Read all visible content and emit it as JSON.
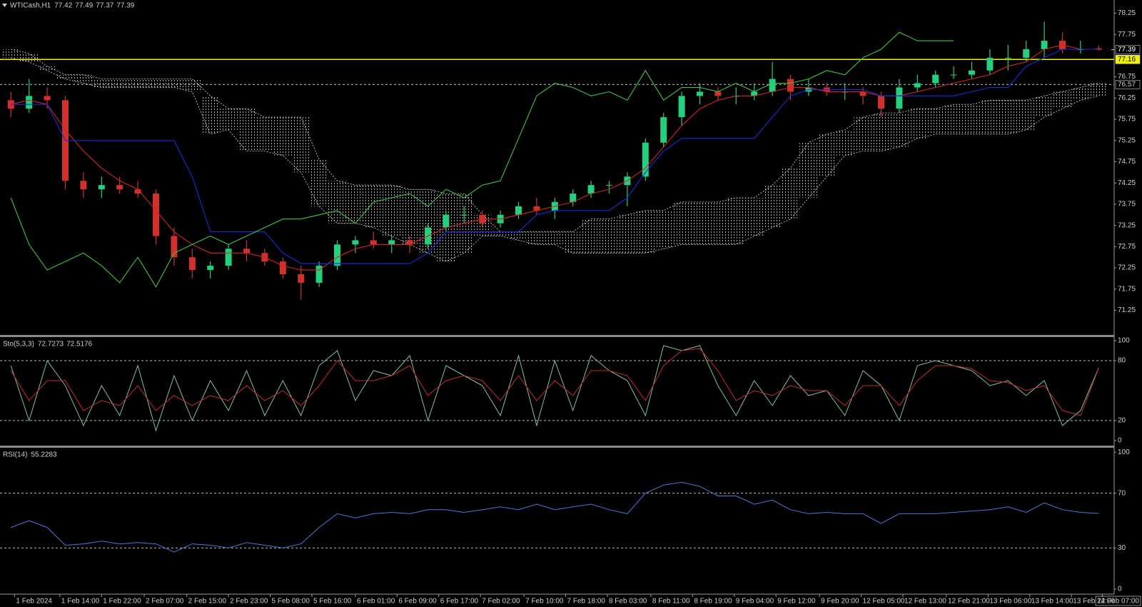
{
  "chart_data": [
    {
      "type": "candlestick",
      "title": "WTICash,H1",
      "header_values": [
        77.42,
        77.49,
        77.37,
        77.39
      ],
      "up_color": "#22d07e",
      "down_color": "#d2302c",
      "open": [
        76.2,
        76.0,
        76.3,
        76.2,
        74.3,
        74.1,
        74.2,
        74.1,
        74.0,
        73.0,
        72.5,
        72.2,
        72.3,
        72.7,
        72.6,
        72.4,
        72.1,
        71.9,
        72.3,
        72.8,
        72.9,
        72.8,
        72.9,
        72.8,
        73.2,
        73.5,
        73.5,
        73.3,
        73.5,
        73.7,
        73.6,
        73.8,
        74.0,
        74.2,
        74.2,
        74.4,
        75.2,
        75.8,
        76.3,
        76.4,
        76.3,
        76.3,
        76.4,
        76.7,
        76.4,
        76.5,
        76.4,
        76.4,
        76.3,
        76.0,
        76.5,
        76.6,
        76.8,
        76.8,
        76.9,
        77.2,
        77.2,
        77.4,
        77.6,
        77.4,
        77.42
      ],
      "high": [
        76.4,
        76.7,
        76.5,
        76.3,
        74.5,
        74.4,
        74.4,
        74.3,
        74.1,
        73.2,
        72.7,
        72.4,
        72.8,
        72.9,
        72.7,
        72.5,
        72.3,
        72.4,
        72.9,
        73.0,
        73.1,
        73.0,
        73.0,
        73.3,
        73.6,
        73.7,
        73.6,
        73.6,
        73.8,
        73.9,
        73.9,
        74.1,
        74.3,
        74.3,
        74.5,
        75.3,
        75.9,
        76.4,
        76.6,
        76.5,
        76.5,
        76.6,
        77.1,
        76.8,
        76.7,
        76.6,
        76.6,
        76.5,
        76.4,
        76.7,
        76.8,
        76.9,
        77.0,
        77.1,
        77.4,
        77.5,
        77.6,
        78.05,
        77.8,
        77.6,
        77.49
      ],
      "low": [
        75.8,
        75.9,
        76.0,
        74.1,
        73.9,
        73.9,
        74.0,
        73.9,
        72.8,
        72.3,
        72.0,
        72.0,
        72.2,
        72.4,
        72.3,
        72.0,
        71.5,
        71.8,
        72.2,
        72.6,
        72.7,
        72.6,
        72.6,
        72.7,
        73.1,
        73.3,
        73.2,
        73.2,
        73.4,
        73.5,
        73.4,
        73.7,
        73.9,
        74.0,
        73.7,
        74.3,
        75.1,
        75.6,
        76.1,
        76.2,
        76.1,
        76.2,
        76.3,
        76.2,
        76.3,
        76.3,
        76.2,
        76.1,
        75.8,
        75.9,
        76.4,
        76.5,
        76.7,
        76.7,
        76.8,
        76.9,
        77.1,
        77.2,
        77.3,
        77.3,
        77.37
      ],
      "close": [
        76.0,
        76.3,
        76.2,
        74.3,
        74.1,
        74.2,
        74.1,
        74.0,
        73.0,
        72.5,
        72.2,
        72.3,
        72.7,
        72.6,
        72.4,
        72.1,
        71.9,
        72.3,
        72.8,
        72.9,
        72.8,
        72.9,
        72.8,
        73.2,
        73.5,
        73.5,
        73.3,
        73.5,
        73.7,
        73.6,
        73.8,
        74.0,
        74.2,
        74.2,
        74.4,
        75.2,
        75.8,
        76.3,
        76.4,
        76.3,
        76.3,
        76.4,
        76.7,
        76.4,
        76.5,
        76.4,
        76.4,
        76.3,
        76.0,
        76.5,
        76.6,
        76.8,
        76.8,
        76.9,
        77.2,
        77.2,
        77.4,
        77.6,
        77.4,
        77.4,
        77.39
      ],
      "cloud": {
        "color": "#dcdcdc",
        "upper": [
          77.4,
          77.3,
          77.0,
          76.8,
          76.8,
          76.7,
          76.7,
          76.7,
          76.7,
          76.7,
          76.7,
          76.3,
          76.0,
          76.0,
          75.8,
          75.8,
          75.8,
          74.8,
          74.3,
          74.2,
          74.2,
          74.2,
          74.1,
          74.1,
          74.0,
          74.0,
          73.5,
          73.1,
          73.1,
          73.1,
          73.1,
          73.1,
          73.4,
          73.4,
          73.5,
          73.6,
          73.6,
          73.8,
          73.8,
          73.8,
          73.9,
          73.9,
          74.2,
          74.6,
          75.2,
          75.4,
          75.5,
          75.8,
          75.9,
          75.9,
          76.0,
          76.0,
          76.1,
          76.1,
          76.2,
          76.2,
          76.2,
          76.3,
          76.4,
          76.5,
          76.6
        ],
        "lower": [
          77.2,
          77.1,
          76.9,
          76.7,
          76.6,
          76.5,
          76.5,
          76.5,
          76.5,
          76.5,
          76.4,
          75.4,
          75.5,
          75.0,
          75.0,
          74.9,
          74.5,
          73.7,
          73.3,
          73.3,
          73.2,
          73.0,
          72.8,
          72.6,
          72.4,
          72.6,
          73.0,
          73.0,
          72.9,
          72.8,
          72.8,
          72.6,
          72.6,
          72.6,
          72.6,
          72.6,
          72.7,
          72.8,
          72.8,
          72.8,
          72.8,
          73.0,
          73.2,
          73.4,
          73.9,
          74.4,
          74.9,
          75.0,
          75.0,
          75.1,
          75.3,
          75.4,
          75.4,
          75.4,
          75.4,
          75.4,
          75.5,
          75.8,
          76.0,
          76.2,
          76.3
        ]
      },
      "series": [
        {
          "color": "#d8221f",
          "values": [
            76.1,
            76.2,
            76.1,
            75.5,
            75.0,
            74.6,
            74.3,
            74.1,
            73.6,
            73.1,
            72.8,
            72.6,
            72.6,
            72.6,
            72.5,
            72.3,
            72.2,
            72.2,
            72.5,
            72.7,
            72.8,
            72.8,
            72.8,
            73.0,
            73.2,
            73.3,
            73.4,
            73.4,
            73.5,
            73.6,
            73.7,
            73.8,
            74.0,
            74.1,
            74.3,
            74.6,
            75.1,
            75.6,
            76.0,
            76.2,
            76.3,
            76.3,
            76.4,
            76.5,
            76.5,
            76.4,
            76.4,
            76.4,
            76.3,
            76.3,
            76.4,
            76.5,
            76.6,
            76.7,
            76.8,
            77.0,
            77.1,
            77.4,
            77.5,
            77.4,
            77.4
          ]
        },
        {
          "color": "#1a2be0",
          "values": [
            76.1,
            76.1,
            76.1,
            75.25,
            75.25,
            75.25,
            75.25,
            75.25,
            75.25,
            75.25,
            74.4,
            73.1,
            73.1,
            73.1,
            73.1,
            72.6,
            72.35,
            72.35,
            72.35,
            72.35,
            72.35,
            72.35,
            72.35,
            72.6,
            73.1,
            73.1,
            73.1,
            73.1,
            73.1,
            73.5,
            73.6,
            73.6,
            73.6,
            73.6,
            73.9,
            74.5,
            75.0,
            75.3,
            75.3,
            75.3,
            75.3,
            75.3,
            75.8,
            76.3,
            76.45,
            76.45,
            76.45,
            76.45,
            76.3,
            76.3,
            76.3,
            76.3,
            76.3,
            76.4,
            76.5,
            76.5,
            77.0,
            77.2,
            77.4,
            77.4,
            77.4
          ]
        },
        {
          "color": "#3cc83c",
          "values": [
            73.9,
            72.8,
            72.2,
            72.4,
            72.6,
            72.3,
            71.9,
            72.5,
            71.8,
            72.6,
            72.8,
            73.0,
            72.8,
            73.0,
            73.2,
            73.4,
            73.4,
            73.5,
            73.6,
            73.3,
            73.8,
            73.9,
            74.0,
            73.7,
            74.1,
            73.9,
            74.2,
            74.3,
            75.3,
            76.3,
            76.6,
            76.5,
            76.3,
            76.4,
            76.2,
            76.9,
            76.2,
            76.5,
            76.5,
            76.4,
            76.6,
            76.4,
            76.6,
            76.6,
            76.7,
            76.9,
            76.8,
            77.2,
            77.4,
            77.8,
            77.6,
            77.6,
            77.6,
            null,
            null,
            null,
            null,
            null,
            null,
            null,
            null
          ]
        }
      ],
      "ylim": [
        70.67,
        78.56
      ],
      "yticks": [
        71.25,
        71.75,
        72.25,
        72.75,
        73.25,
        73.75,
        74.25,
        74.75,
        75.25,
        75.75,
        76.25,
        76.75,
        77.75,
        78.25
      ],
      "hlines": [
        {
          "value": 77.16,
          "color": "#f0f000",
          "style": "solid"
        },
        {
          "value": 76.57,
          "color": "#c8c8c8",
          "style": "dashed"
        }
      ],
      "last_price": 77.39,
      "xticks": [
        {
          "value": 0.2,
          "label": "1 Feb 2024"
        },
        {
          "value": 2.7,
          "label": "1 Feb 14:00"
        },
        {
          "value": 5.0,
          "label": "1 Feb 22:00"
        },
        {
          "value": 7.35,
          "label": "2 Feb 07:00"
        },
        {
          "value": 9.7,
          "label": "2 Feb 15:00"
        },
        {
          "value": 12.0,
          "label": "2 Feb 23:00"
        },
        {
          "value": 14.3,
          "label": "5 Feb 08:00"
        },
        {
          "value": 16.6,
          "label": "5 Feb 16:00"
        },
        {
          "value": 19.0,
          "label": "6 Feb 01:00"
        },
        {
          "value": 21.3,
          "label": "6 Feb 09:00"
        },
        {
          "value": 23.6,
          "label": "6 Feb 17:00"
        },
        {
          "value": 25.9,
          "label": "7 Feb 02:00"
        },
        {
          "value": 28.3,
          "label": "7 Feb 10:00"
        },
        {
          "value": 30.6,
          "label": "7 Feb 18:00"
        },
        {
          "value": 32.9,
          "label": "8 Feb 03:00"
        },
        {
          "value": 35.3,
          "label": "8 Feb 11:00"
        },
        {
          "value": 37.6,
          "label": "8 Feb 19:00"
        },
        {
          "value": 39.9,
          "label": "9 Feb 04:00"
        },
        {
          "value": 42.2,
          "label": "9 Feb 12:00"
        },
        {
          "value": 44.6,
          "label": "9 Feb 20:00"
        },
        {
          "value": 46.9,
          "label": "12 Feb 05:00"
        },
        {
          "value": 49.2,
          "label": "12 Feb 13:00"
        },
        {
          "value": 51.6,
          "label": "12 Feb 21:00"
        },
        {
          "value": 53.9,
          "label": "13 Feb 06:00"
        },
        {
          "value": 56.2,
          "label": "13 Feb 14:00"
        },
        {
          "value": 58.5,
          "label": "13 Feb 22:00"
        },
        {
          "value": 60.2,
          "label": "14 Feb 07:00"
        }
      ]
    },
    {
      "type": "line",
      "title": "Sto(5,3,3)",
      "header_values": [
        72.7273,
        72.5176
      ],
      "series": [
        {
          "color": "#7fc49a",
          "values": [
            75,
            20,
            80,
            55,
            15,
            55,
            25,
            75,
            10,
            65,
            20,
            60,
            30,
            70,
            25,
            60,
            25,
            75,
            90,
            40,
            70,
            65,
            85,
            20,
            75,
            65,
            55,
            25,
            85,
            15,
            80,
            30,
            85,
            70,
            60,
            25,
            95,
            90,
            95,
            55,
            25,
            60,
            35,
            65,
            45,
            50,
            25,
            70,
            55,
            20,
            75,
            80,
            75,
            70,
            55,
            60,
            45,
            60,
            15,
            30,
            72.7273
          ]
        },
        {
          "color": "#c8282a",
          "values": [
            70,
            40,
            60,
            60,
            30,
            40,
            35,
            55,
            30,
            45,
            35,
            45,
            40,
            55,
            40,
            50,
            35,
            55,
            80,
            60,
            60,
            65,
            75,
            45,
            60,
            65,
            60,
            40,
            65,
            40,
            60,
            45,
            70,
            70,
            65,
            40,
            75,
            90,
            92,
            70,
            40,
            50,
            45,
            55,
            50,
            50,
            35,
            55,
            55,
            35,
            60,
            75,
            75,
            72,
            60,
            58,
            50,
            55,
            30,
            25,
            72.5176
          ]
        }
      ],
      "ylim": [
        -5.1,
        103.6
      ],
      "yticks": [
        0,
        20,
        80,
        100
      ],
      "levels": [
        20,
        80
      ]
    },
    {
      "type": "line",
      "title": "RSI(14)",
      "header_values": [
        55.2283
      ],
      "series": [
        {
          "color": "#4a78dc",
          "values": [
            45,
            50,
            45,
            32,
            33,
            35,
            33,
            34,
            33,
            27,
            33,
            32,
            30,
            34,
            32,
            30,
            33,
            45,
            55,
            52,
            55,
            56,
            55,
            58,
            58,
            56,
            58,
            60,
            58,
            62,
            58,
            60,
            62,
            58,
            55,
            70,
            76,
            78,
            75,
            68,
            68,
            62,
            65,
            58,
            55,
            56,
            55,
            55,
            48,
            55,
            55,
            55,
            56,
            57,
            58,
            60,
            56,
            63,
            58,
            56,
            55.2283
          ]
        }
      ],
      "ylim": [
        -3.7,
        103.2
      ],
      "yticks": [
        0,
        30,
        70,
        100
      ],
      "levels": [
        30,
        70
      ]
    }
  ]
}
